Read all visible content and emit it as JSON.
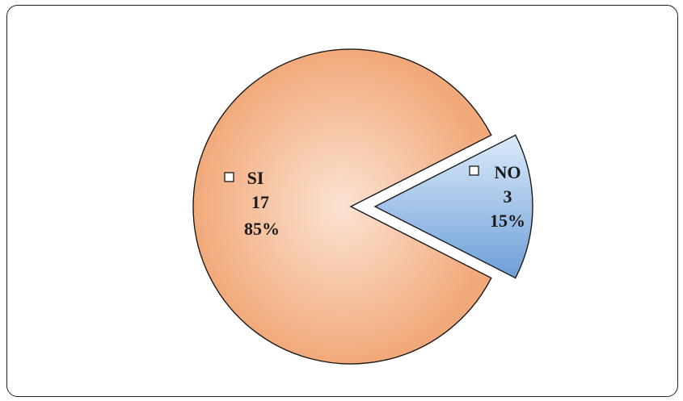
{
  "chart_data": {
    "type": "pie",
    "title": "",
    "categories": [
      "SI",
      "NO"
    ],
    "values": [
      17,
      3
    ],
    "percent_labels": [
      "85%",
      "15%"
    ],
    "count_labels": [
      "17",
      "3"
    ],
    "exploded": "NO",
    "legend": "none",
    "colors": {
      "SI_light": "#fbe3d2",
      "SI_dark": "#f2a97a",
      "NO_light": "#dcebfa",
      "NO_dark": "#6d9ed8",
      "stroke": "#1a1a1a"
    }
  }
}
